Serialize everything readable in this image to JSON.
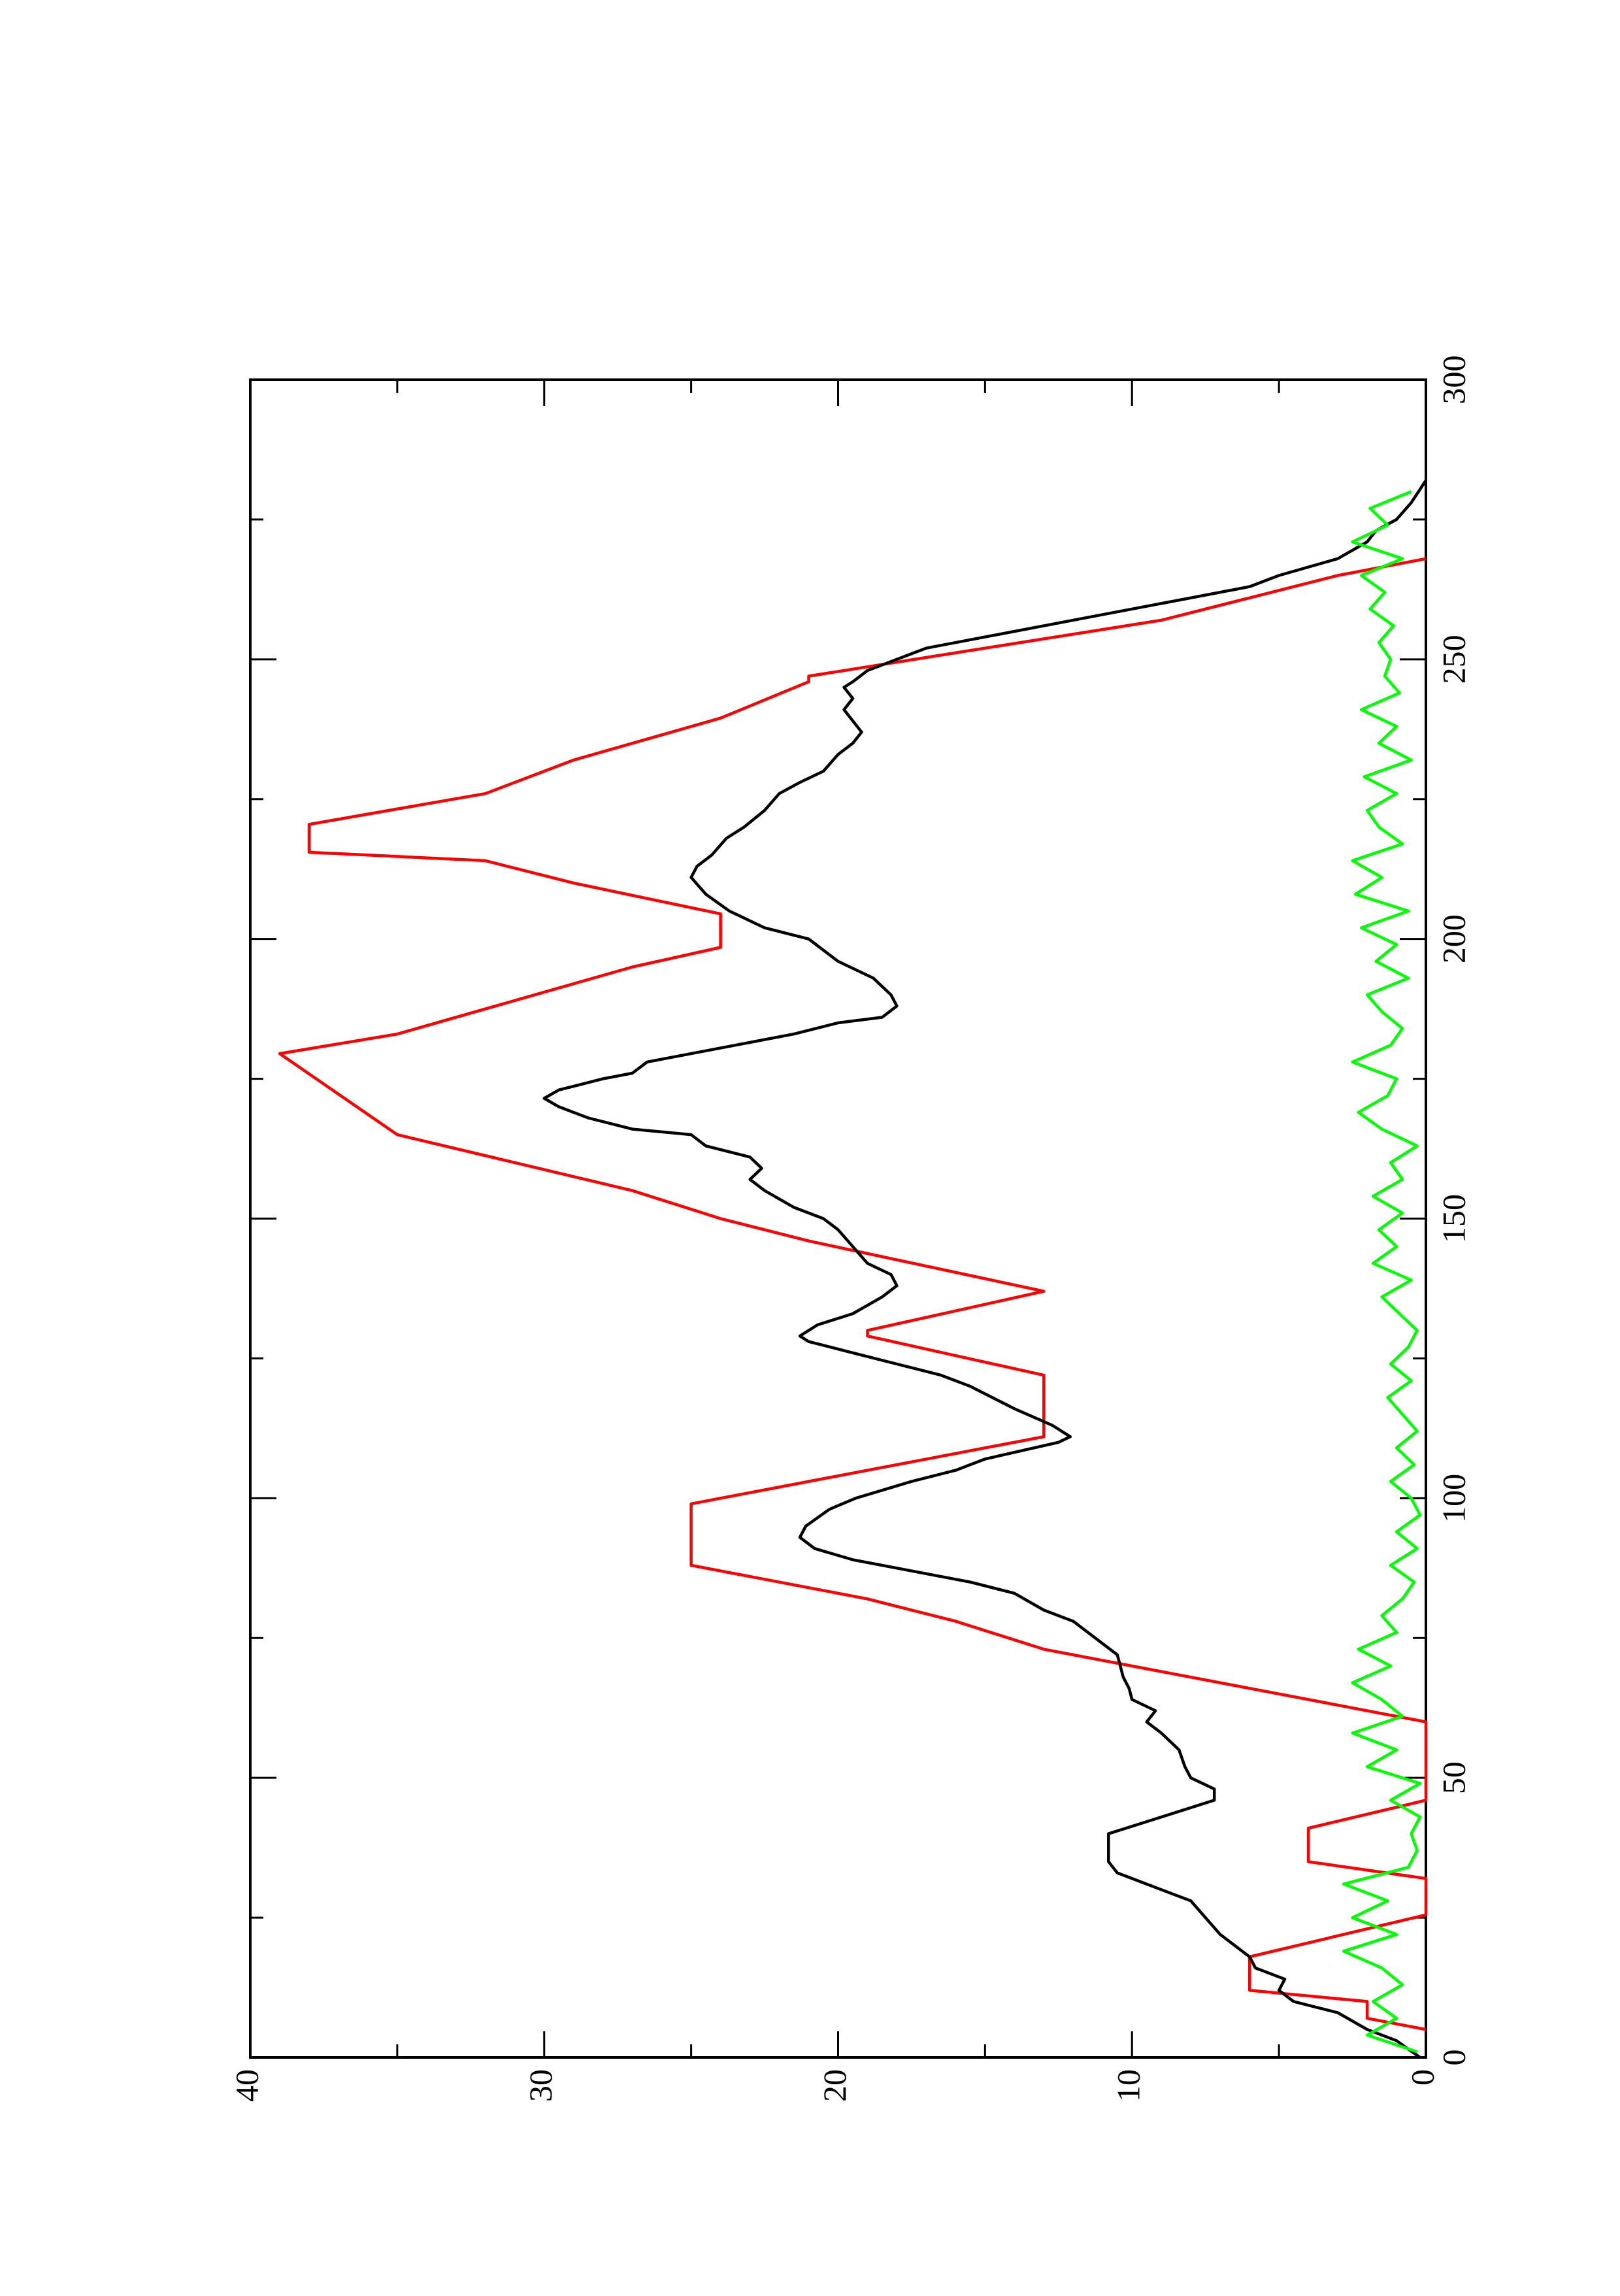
{
  "chart_data": {
    "type": "line",
    "xlim": [
      0,
      300
    ],
    "xticks": [
      0,
      50,
      100,
      150,
      200,
      250,
      300
    ],
    "xminorticks": [
      25,
      75,
      125,
      175,
      225,
      275
    ],
    "ylim": [
      0,
      40
    ],
    "yticks": [
      0,
      10,
      20,
      30,
      40
    ],
    "yminorticks": [
      5,
      15,
      25,
      35
    ],
    "rotated": true,
    "series": [
      {
        "color": "#ff0000",
        "x": [
          5,
          7,
          10,
          12,
          18,
          25.5,
          32,
          35,
          41,
          46,
          60,
          63,
          73,
          78,
          82,
          88,
          99,
          105,
          111,
          122,
          129,
          130,
          137,
          146,
          150,
          155,
          165,
          179.5,
          183,
          195,
          198.5,
          204.5,
          210,
          214,
          215.5,
          220.5,
          226,
          232,
          239.5,
          246,
          247,
          257,
          265,
          268
        ],
        "values": [
          0,
          2,
          2,
          6,
          6,
          0,
          0,
          4,
          4,
          0,
          0,
          3,
          13,
          16,
          19,
          25,
          25,
          19,
          13,
          13,
          19,
          19,
          13,
          21,
          24,
          27,
          35,
          39,
          35,
          27,
          24,
          24,
          29,
          32,
          38,
          38,
          32,
          29,
          24,
          21,
          21,
          9,
          3,
          0
        ]
      },
      {
        "color": "#000000",
        "x": [
          0,
          3,
          5,
          8,
          10,
          12,
          14,
          16,
          18,
          20,
          22,
          25,
          28,
          30,
          33,
          35,
          40,
          43,
          46,
          48,
          50,
          52,
          55,
          58,
          60,
          62,
          64,
          66,
          68,
          72,
          74,
          78,
          80,
          83,
          85,
          87,
          89,
          91,
          93,
          95,
          98,
          100,
          103,
          105,
          107,
          110,
          111,
          113,
          116,
          120,
          122,
          124,
          126,
          128,
          129,
          131,
          133,
          136,
          138,
          140,
          142,
          145,
          148,
          150,
          152,
          155,
          157,
          159,
          161,
          163,
          165,
          166,
          168,
          170,
          171.5,
          173,
          175,
          176,
          178,
          180,
          183,
          185,
          186,
          188,
          190,
          193,
          196,
          200,
          202,
          205,
          208,
          211,
          213,
          215,
          218,
          220,
          223,
          226,
          228,
          230,
          233,
          235,
          237,
          239,
          241,
          243,
          245,
          246,
          248,
          250,
          252,
          254,
          257,
          260,
          263,
          265,
          268,
          271,
          273,
          275,
          278,
          282
        ],
        "values": [
          0.2,
          1,
          2,
          3,
          4.5,
          5,
          4.8,
          5.8,
          6,
          6.5,
          7,
          7.5,
          8,
          9,
          10.5,
          10.8,
          10.8,
          9,
          7.2,
          7.2,
          8,
          8.2,
          8.4,
          9,
          9.5,
          9.2,
          10,
          10.1,
          10.3,
          10.5,
          11,
          12,
          13,
          14,
          15.5,
          17.5,
          19.5,
          20.8,
          21.3,
          21.1,
          20.3,
          19.4,
          17.5,
          16,
          15,
          12.5,
          12.1,
          12.7,
          14,
          15.5,
          16.5,
          18,
          19.5,
          21,
          21.3,
          20.7,
          19.5,
          18.5,
          18,
          18.2,
          19,
          19.5,
          20,
          20.5,
          21.5,
          22.5,
          23,
          22.6,
          23,
          24.5,
          25,
          27,
          28.5,
          29.5,
          30,
          29.5,
          28,
          27,
          26.5,
          24.5,
          21.5,
          20,
          18.5,
          18,
          18.2,
          18.8,
          20,
          21,
          22.5,
          23.7,
          24.5,
          25,
          24.8,
          24.3,
          23.8,
          23.2,
          22.5,
          22,
          21.3,
          20.5,
          20,
          19.5,
          19.2,
          19.5,
          19.8,
          19.5,
          19.8,
          19.5,
          19,
          18,
          17,
          15,
          12,
          9,
          6,
          5,
          3,
          2,
          1.7,
          1,
          0.5,
          0
        ]
      },
      {
        "color": "#00ff00",
        "x": [
          1,
          4,
          7,
          10,
          13,
          16,
          19,
          22,
          25,
          28,
          31,
          34,
          37,
          40,
          43,
          46,
          49,
          52,
          55,
          58,
          61,
          64,
          67,
          70,
          73,
          76,
          79,
          82,
          85,
          88,
          91,
          94,
          97,
          100,
          103,
          106,
          109,
          112,
          115,
          118,
          121,
          124,
          127,
          130,
          133,
          136,
          139,
          142,
          145,
          148,
          151,
          154,
          157,
          160,
          163,
          166,
          169,
          172,
          175,
          178,
          181,
          184,
          187,
          190,
          193,
          196,
          199,
          202,
          205,
          208,
          211,
          214,
          217,
          220,
          223,
          226,
          229,
          232,
          235,
          238,
          241,
          244,
          247,
          250,
          253,
          256,
          259,
          262,
          265,
          268,
          271,
          274,
          277,
          280
        ],
        "values": [
          0.3,
          2,
          1,
          1.8,
          0.8,
          1.5,
          2.8,
          1,
          2.5,
          1.3,
          2.8,
          0.6,
          0.3,
          0.5,
          0.2,
          1.2,
          0.2,
          2,
          1,
          2.5,
          0.8,
          1.5,
          2.5,
          1.2,
          2.3,
          1,
          1.5,
          0.8,
          0.4,
          1.2,
          0.3,
          1,
          0.2,
          0.5,
          1.2,
          0.4,
          1,
          0.3,
          0.8,
          1.3,
          0.5,
          1.2,
          0.6,
          0.3,
          0.9,
          1.5,
          0.5,
          1.8,
          1,
          1.6,
          0.8,
          1.8,
          0.8,
          1.2,
          0.3,
          1.5,
          2.3,
          1.3,
          1,
          2.5,
          1.2,
          0.8,
          1.5,
          2,
          0.6,
          1.7,
          1,
          2.2,
          0.6,
          2.4,
          1.5,
          2.5,
          0.8,
          1.6,
          2,
          1,
          2.1,
          0.5,
          1.6,
          1,
          2.2,
          0.9,
          1.4,
          1.2,
          1.6,
          1.1,
          1.9,
          1.4,
          2.2,
          0.8,
          2.5,
          1.3,
          1.9,
          0.5
        ]
      }
    ]
  }
}
